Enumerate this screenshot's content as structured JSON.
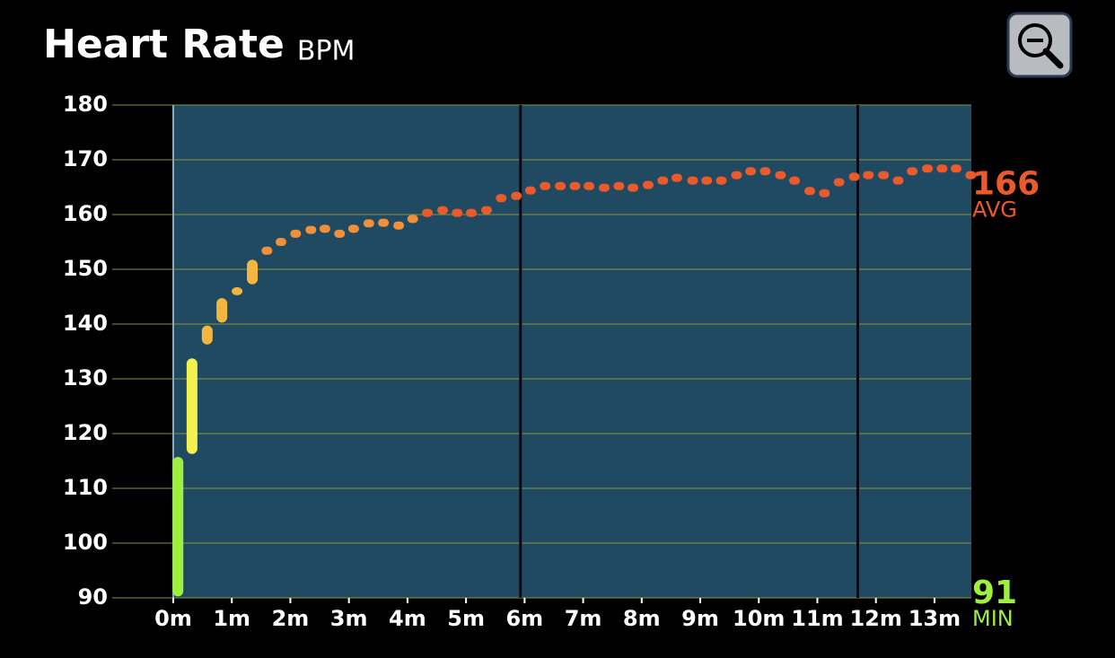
{
  "chart_data": {
    "type": "range-dots",
    "title": "Heart Rate",
    "unit": "BPM",
    "xlim": [
      0,
      13.63
    ],
    "ylim": [
      90,
      180
    ],
    "yticks": [
      90,
      100,
      110,
      120,
      130,
      140,
      150,
      160,
      170,
      180
    ],
    "xticks": [
      {
        "value": 0,
        "label": "0m"
      },
      {
        "value": 1,
        "label": "1m"
      },
      {
        "value": 2,
        "label": "2m"
      },
      {
        "value": 3,
        "label": "3m"
      },
      {
        "value": 4,
        "label": "4m"
      },
      {
        "value": 5,
        "label": "5m"
      },
      {
        "value": 6,
        "label": "6m"
      },
      {
        "value": 7,
        "label": "7m"
      },
      {
        "value": 8,
        "label": "8m"
      },
      {
        "value": 9,
        "label": "9m"
      },
      {
        "value": 10,
        "label": "10m"
      },
      {
        "value": 11,
        "label": "11m"
      },
      {
        "value": 12,
        "label": "12m"
      },
      {
        "value": 13,
        "label": "13m"
      }
    ],
    "grid": true,
    "lap_markers": [
      5.93,
      11.69
    ],
    "series": [
      {
        "color": "#9ef040",
        "x": [
          0.08
        ],
        "low": [
          91
        ],
        "high": [
          115
        ]
      },
      {
        "color": "#f4f050",
        "x": [
          0.32
        ],
        "low": [
          117
        ],
        "high": [
          133
        ]
      },
      {
        "color": "#f5b640",
        "x": [
          0.58,
          0.83,
          1.09,
          1.35
        ],
        "low": [
          137,
          141,
          146,
          148
        ],
        "high": [
          139,
          144,
          146,
          151
        ]
      },
      {
        "color": "#f0903a",
        "x": [
          1.6,
          1.84,
          2.09,
          2.35,
          2.59,
          2.84,
          3.08,
          3.34,
          3.59,
          3.85,
          4.09
        ],
        "values": [
          153.4,
          155,
          156.5,
          157.2,
          157.4,
          156.5,
          157.4,
          158.4,
          158.5,
          158,
          159.2
        ]
      },
      {
        "color": "#ea5a2a",
        "x": [
          4.34,
          4.6,
          4.85,
          5.09,
          5.35,
          5.6,
          5.86,
          6.1,
          6.35,
          6.61,
          6.86,
          7.1,
          7.36,
          7.61,
          7.85,
          8.11,
          8.36,
          8.6,
          8.87,
          9.11,
          9.36,
          9.62,
          9.86,
          10.11,
          10.37,
          10.61,
          10.87,
          11.12,
          11.37,
          11.63,
          11.87,
          12.13,
          12.38,
          12.62,
          12.88,
          13.13,
          13.37,
          13.62
        ],
        "values": [
          160.3,
          160.8,
          160.3,
          160.3,
          160.8,
          163,
          163.4,
          164.4,
          165.2,
          165.2,
          165.2,
          165.2,
          164.9,
          165.2,
          164.9,
          165.4,
          166.2,
          166.7,
          166.2,
          166.2,
          166.2,
          167.2,
          167.9,
          167.9,
          167.2,
          166.2,
          164.3,
          163.9,
          165.9,
          166.9,
          167.2,
          167.2,
          166.2,
          167.9,
          168.4,
          168.4,
          168.4,
          167.2
        ]
      }
    ],
    "avg": 166,
    "avg_label": "AVG",
    "avg_color": "#ea5a2a",
    "min": 91,
    "min_label": "MIN",
    "min_color": "#9ef040"
  }
}
